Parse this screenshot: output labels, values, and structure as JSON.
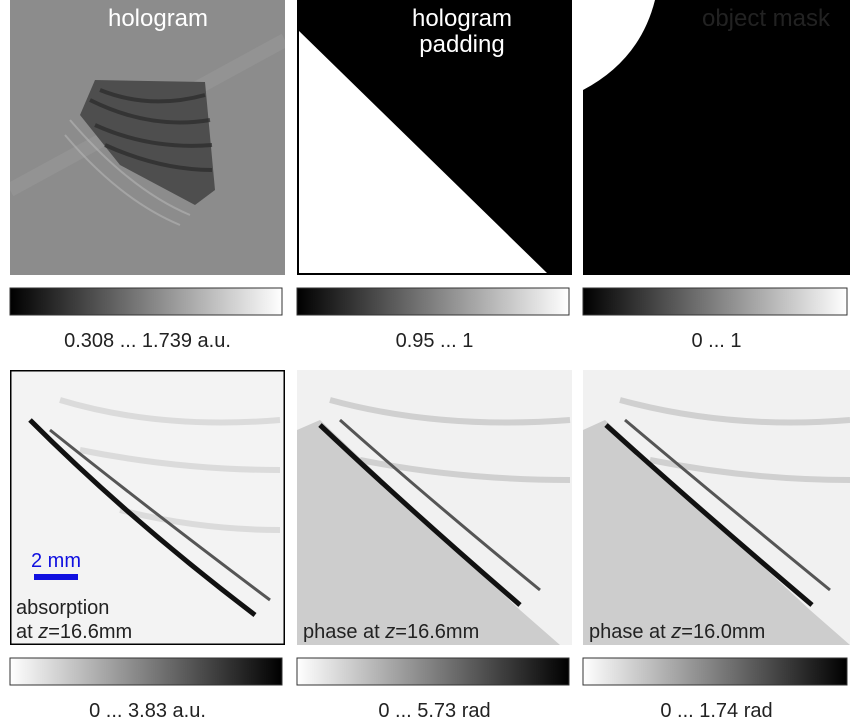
{
  "top_row": [
    {
      "title_lines": [
        "hologram"
      ],
      "colorbar_label": "0.308 ... 1.739 a.u."
    },
    {
      "title_lines": [
        "hologram",
        "padding"
      ],
      "colorbar_label": "0.95 ... 1"
    },
    {
      "title_lines": [
        "object mask"
      ],
      "colorbar_label": "0 ... 1"
    }
  ],
  "bottom_row": [
    {
      "caption_lines": [
        [
          "absorption"
        ],
        [
          "at ",
          "z",
          "=16.6mm"
        ]
      ],
      "colorbar_label": "0 ... 3.83 a.u."
    },
    {
      "caption_lines": [
        [
          "phase at ",
          "z",
          "=16.6mm"
        ]
      ],
      "colorbar_label": "0 ... 5.73 rad"
    },
    {
      "caption_lines": [
        [
          "phase at ",
          "z",
          "=16.0mm"
        ]
      ],
      "colorbar_label": "0 ... 1.74 rad"
    }
  ],
  "scale_bar": "2 mm"
}
